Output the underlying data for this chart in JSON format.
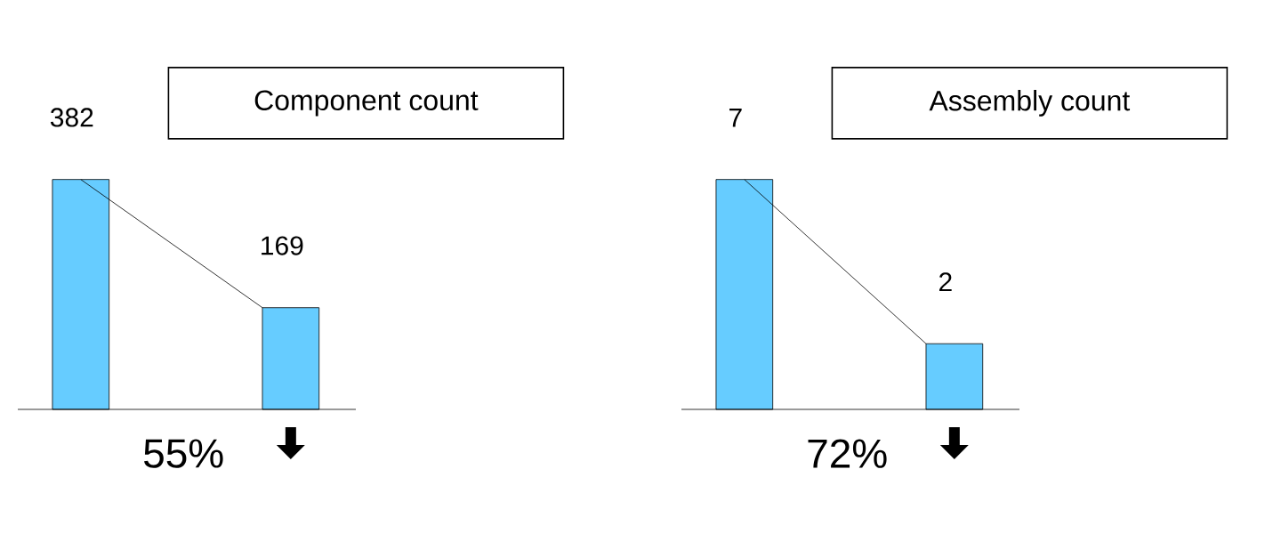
{
  "chart_data": [
    {
      "type": "bar",
      "title": "Component count",
      "categories": [
        null,
        null
      ],
      "values": [
        382,
        169
      ],
      "color": "#66ccff",
      "data_labels": true,
      "annotations": [
        "55%"
      ]
    },
    {
      "type": "bar",
      "title": "Assembly count",
      "categories": [
        null,
        null
      ],
      "values": [
        7,
        2
      ],
      "color": "#66ccff",
      "data_labels": true,
      "annotations": [
        "72%"
      ]
    }
  ]
}
